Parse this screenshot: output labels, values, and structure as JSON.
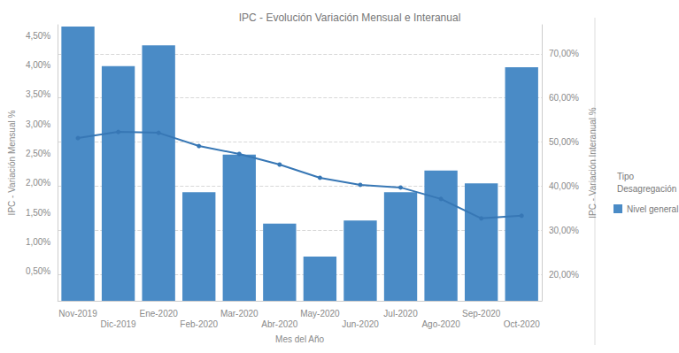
{
  "chart_data": {
    "type": "bar",
    "title": "IPC - Evolución Variación Mensual e Interanual",
    "x_label": "Mes del Año",
    "y_label": "IPC - Variación Mensual %",
    "y2_label": "IPC - Variación Interanual %",
    "legend_title": "Tipo Desagregación",
    "categories": [
      "Nov-2019",
      "Dic-2019",
      "Ene-2020",
      "Feb-2020",
      "Mar-2020",
      "Abr-2020",
      "May-2020",
      "Jun-2020",
      "Jul-2020",
      "Ago-2020",
      "Sep-2020",
      "Oct-2020"
    ],
    "series": [
      {
        "name": "Nivel general",
        "type": "bar",
        "color": "#4a8bc6",
        "values": [
          4.65,
          3.98,
          4.33,
          1.84,
          2.48,
          1.31,
          0.75,
          1.36,
          1.84,
          2.21,
          1.99,
          3.96
        ]
      },
      {
        "name": "Nivel general",
        "type": "line",
        "axis": "y2",
        "color": "#3777b5",
        "marker": "circle",
        "values": [
          50.9,
          52.3,
          52.1,
          49.1,
          47.3,
          44.9,
          41.9,
          40.3,
          39.7,
          37.1,
          32.7,
          33.3
        ]
      }
    ],
    "ylim": [
      0,
      4.68
    ],
    "yticks": [
      {
        "value": 0.5,
        "label": "0,50%"
      },
      {
        "value": 1.0,
        "label": "1,00%"
      },
      {
        "value": 1.5,
        "label": "1,50%"
      },
      {
        "value": 2.0,
        "label": "2,00%"
      },
      {
        "value": 2.5,
        "label": "2,50%"
      },
      {
        "value": 3.0,
        "label": "3,00%"
      },
      {
        "value": 3.5,
        "label": "3,50%"
      },
      {
        "value": 4.0,
        "label": "4,00%"
      },
      {
        "value": 4.5,
        "label": "4,50%"
      }
    ],
    "y2lim": [
      14,
      76.6
    ],
    "y2ticks": [
      {
        "value": 20,
        "label": "20,00%"
      },
      {
        "value": 30,
        "label": "30,00%"
      },
      {
        "value": 40,
        "label": "40,00%"
      },
      {
        "value": 50,
        "label": "50,00%"
      },
      {
        "value": 60,
        "label": "60,00%"
      },
      {
        "value": 70,
        "label": "70,00%"
      }
    ],
    "grid": true,
    "legend": "right"
  }
}
